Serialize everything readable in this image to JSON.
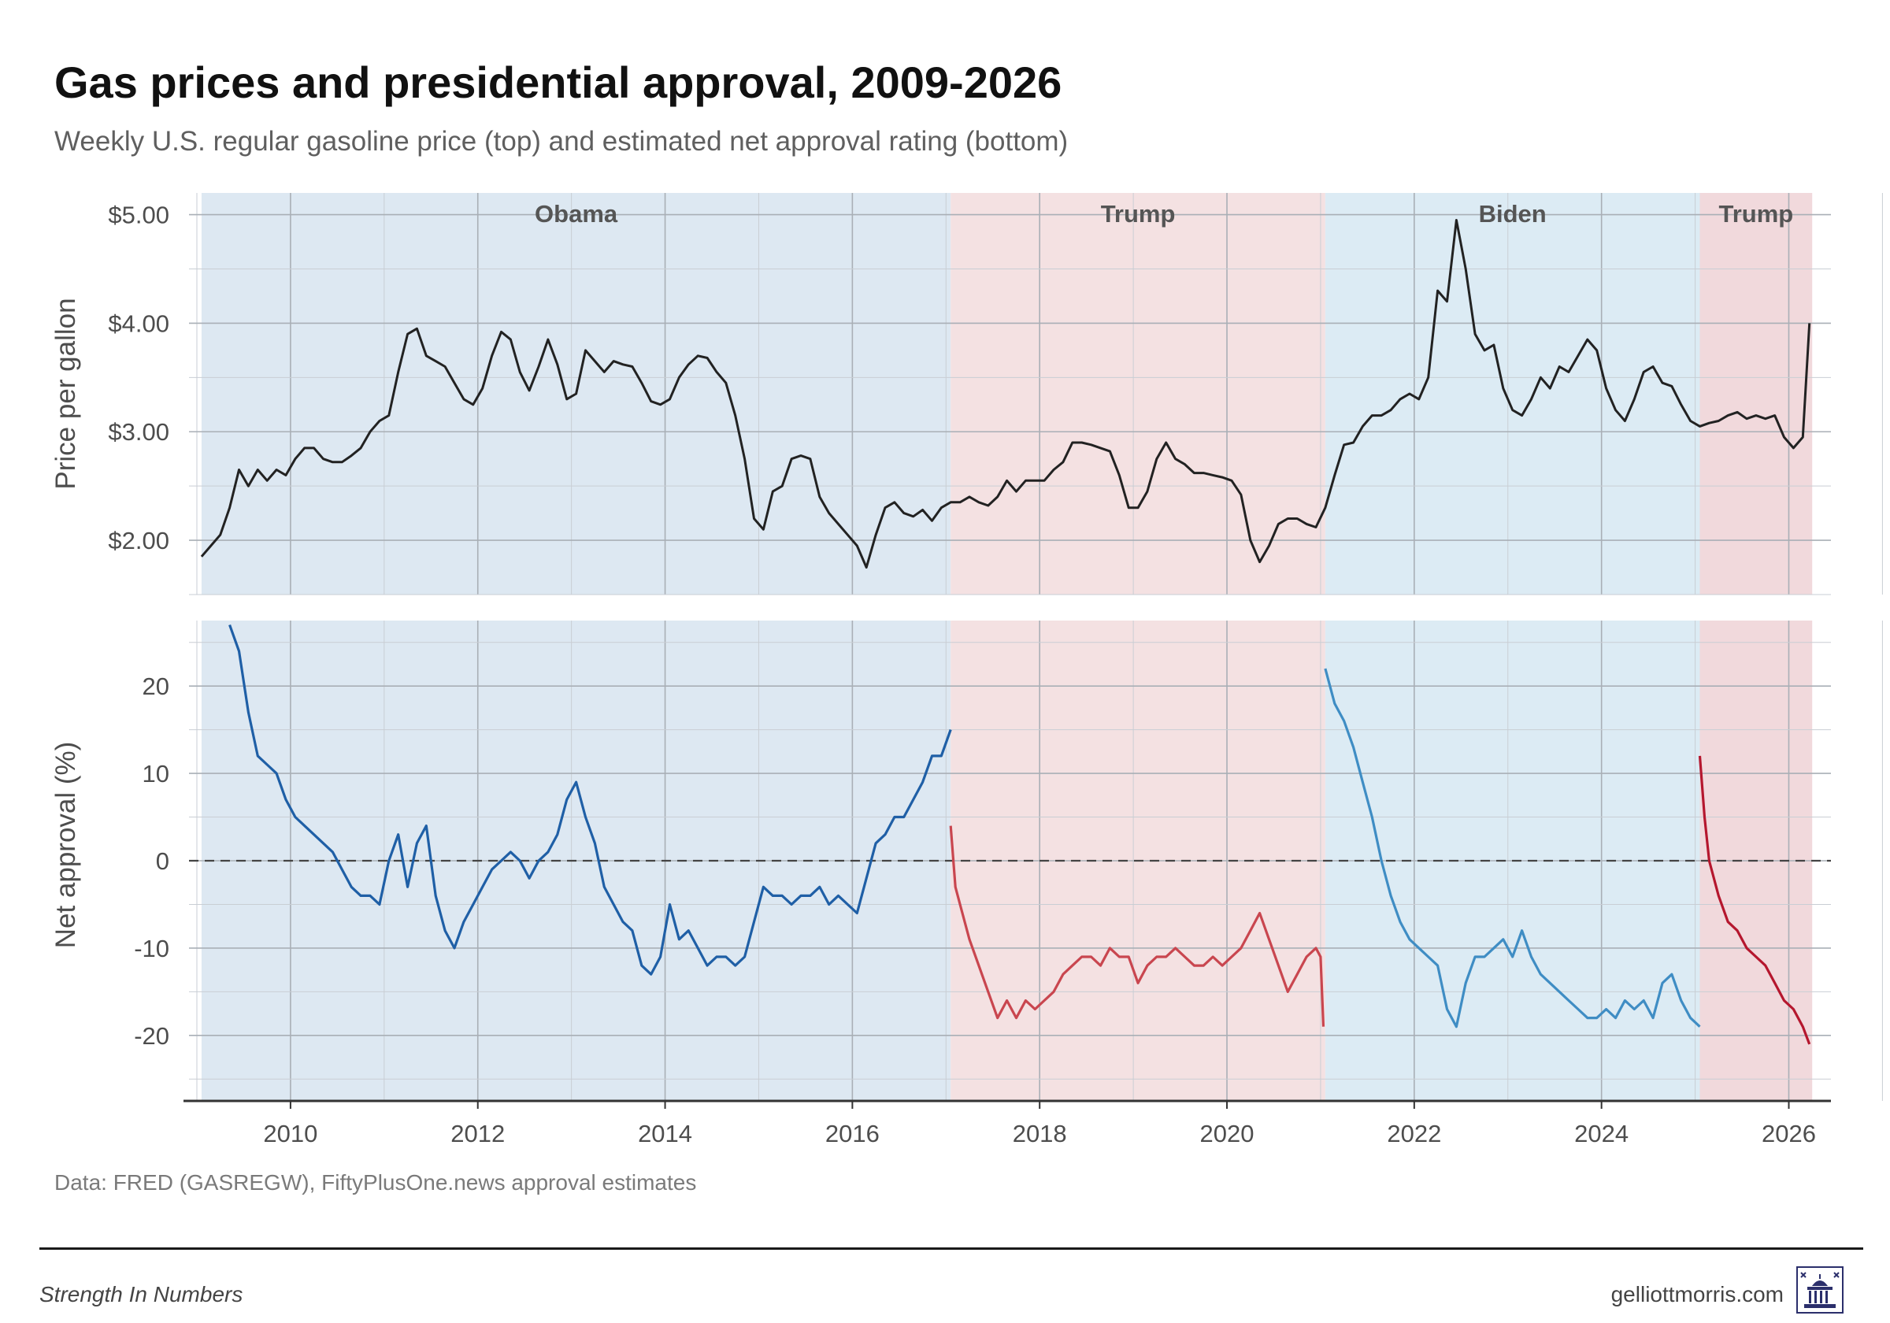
{
  "title": "Gas prices and presidential approval, 2009-2026",
  "subtitle": "Weekly U.S. regular gasoline price (top) and estimated net approval rating (bottom)",
  "caption": "Data: FRED (GASREGW), FiftyPlusOne.news approval estimates",
  "footer": {
    "left": "Strength In Numbers",
    "right": "gelliottmorris.com"
  },
  "colors": {
    "dem_band": "#dde8f2",
    "rep_band": "#f4e1e2",
    "biden_band": "#dcebf4",
    "trump2_band": "#f1d9dc",
    "gas_line": "#222222",
    "obama": "#1f5fa6",
    "trump1": "#c9464f",
    "biden": "#3f8dc4",
    "trump2": "#b5172e"
  },
  "chart_data": [
    {
      "type": "line",
      "panel": "top",
      "ylabel": "Price per gallon",
      "xlim": [
        2009.0,
        2026.45
      ],
      "ylim": [
        1.5,
        5.2
      ],
      "yticks": [
        2.0,
        3.0,
        4.0,
        5.0
      ],
      "ytick_labels": [
        "$2.00",
        "$3.00",
        "$4.00",
        "$5.00"
      ],
      "eras": [
        {
          "label": "Obama",
          "start": 2009.05,
          "end": 2017.05,
          "color": "#dde8f2"
        },
        {
          "label": "Trump",
          "start": 2017.05,
          "end": 2021.05,
          "color": "#f4e1e2"
        },
        {
          "label": "Biden",
          "start": 2021.05,
          "end": 2025.05,
          "color": "#dcebf4"
        },
        {
          "label": "Trump",
          "start": 2025.05,
          "end": 2026.25,
          "color": "#f1d9dc"
        }
      ],
      "series": [
        {
          "name": "Weekly U.S. regular gasoline price",
          "x": [
            2009.05,
            2009.15,
            2009.25,
            2009.35,
            2009.45,
            2009.55,
            2009.65,
            2009.75,
            2009.85,
            2009.95,
            2010.05,
            2010.15,
            2010.25,
            2010.35,
            2010.45,
            2010.55,
            2010.65,
            2010.75,
            2010.85,
            2010.95,
            2011.05,
            2011.15,
            2011.25,
            2011.35,
            2011.45,
            2011.55,
            2011.65,
            2011.75,
            2011.85,
            2011.95,
            2012.05,
            2012.15,
            2012.25,
            2012.35,
            2012.45,
            2012.55,
            2012.65,
            2012.75,
            2012.85,
            2012.95,
            2013.05,
            2013.15,
            2013.25,
            2013.35,
            2013.45,
            2013.55,
            2013.65,
            2013.75,
            2013.85,
            2013.95,
            2014.05,
            2014.15,
            2014.25,
            2014.35,
            2014.45,
            2014.55,
            2014.65,
            2014.75,
            2014.85,
            2014.95,
            2015.05,
            2015.15,
            2015.25,
            2015.35,
            2015.45,
            2015.55,
            2015.65,
            2015.75,
            2015.85,
            2015.95,
            2016.05,
            2016.15,
            2016.25,
            2016.35,
            2016.45,
            2016.55,
            2016.65,
            2016.75,
            2016.85,
            2016.95,
            2017.05,
            2017.15,
            2017.25,
            2017.35,
            2017.45,
            2017.55,
            2017.65,
            2017.75,
            2017.85,
            2017.95,
            2018.05,
            2018.15,
            2018.25,
            2018.35,
            2018.45,
            2018.55,
            2018.65,
            2018.75,
            2018.85,
            2018.95,
            2019.05,
            2019.15,
            2019.25,
            2019.35,
            2019.45,
            2019.55,
            2019.65,
            2019.75,
            2019.85,
            2019.95,
            2020.05,
            2020.15,
            2020.25,
            2020.35,
            2020.45,
            2020.55,
            2020.65,
            2020.75,
            2020.85,
            2020.95,
            2021.05,
            2021.15,
            2021.25,
            2021.35,
            2021.45,
            2021.55,
            2021.65,
            2021.75,
            2021.85,
            2021.95,
            2022.05,
            2022.15,
            2022.25,
            2022.35,
            2022.45,
            2022.55,
            2022.65,
            2022.75,
            2022.85,
            2022.95,
            2023.05,
            2023.15,
            2023.25,
            2023.35,
            2023.45,
            2023.55,
            2023.65,
            2023.75,
            2023.85,
            2023.95,
            2024.05,
            2024.15,
            2024.25,
            2024.35,
            2024.45,
            2024.55,
            2024.65,
            2024.75,
            2024.85,
            2024.95,
            2025.05,
            2025.15,
            2025.25,
            2025.35,
            2025.45,
            2025.55,
            2025.65,
            2025.75,
            2025.85,
            2025.95,
            2026.05,
            2026.15,
            2026.22
          ],
          "values": [
            1.85,
            1.95,
            2.05,
            2.3,
            2.65,
            2.5,
            2.65,
            2.55,
            2.65,
            2.6,
            2.75,
            2.85,
            2.85,
            2.75,
            2.72,
            2.72,
            2.78,
            2.85,
            3.0,
            3.1,
            3.15,
            3.55,
            3.9,
            3.95,
            3.7,
            3.65,
            3.6,
            3.45,
            3.3,
            3.25,
            3.4,
            3.7,
            3.92,
            3.85,
            3.55,
            3.38,
            3.6,
            3.85,
            3.62,
            3.3,
            3.35,
            3.75,
            3.65,
            3.55,
            3.65,
            3.62,
            3.6,
            3.45,
            3.28,
            3.25,
            3.3,
            3.5,
            3.62,
            3.7,
            3.68,
            3.55,
            3.45,
            3.15,
            2.75,
            2.2,
            2.1,
            2.45,
            2.5,
            2.75,
            2.78,
            2.75,
            2.4,
            2.25,
            2.15,
            2.05,
            1.95,
            1.75,
            2.05,
            2.3,
            2.35,
            2.25,
            2.22,
            2.28,
            2.18,
            2.3,
            2.35,
            2.35,
            2.4,
            2.35,
            2.32,
            2.4,
            2.55,
            2.45,
            2.55,
            2.55,
            2.55,
            2.65,
            2.72,
            2.9,
            2.9,
            2.88,
            2.85,
            2.82,
            2.6,
            2.3,
            2.3,
            2.45,
            2.75,
            2.9,
            2.75,
            2.7,
            2.62,
            2.62,
            2.6,
            2.58,
            2.55,
            2.42,
            2.0,
            1.8,
            1.95,
            2.15,
            2.2,
            2.2,
            2.15,
            2.12,
            2.3,
            2.6,
            2.88,
            2.9,
            3.05,
            3.15,
            3.15,
            3.2,
            3.3,
            3.35,
            3.3,
            3.5,
            4.3,
            4.2,
            4.95,
            4.5,
            3.9,
            3.75,
            3.8,
            3.4,
            3.2,
            3.15,
            3.3,
            3.5,
            3.4,
            3.6,
            3.55,
            3.7,
            3.85,
            3.75,
            3.4,
            3.2,
            3.1,
            3.3,
            3.55,
            3.6,
            3.45,
            3.42,
            3.25,
            3.1,
            3.05,
            3.08,
            3.1,
            3.15,
            3.18,
            3.12,
            3.15,
            3.12,
            3.15,
            2.95,
            2.85,
            2.95,
            4.0
          ]
        }
      ]
    },
    {
      "type": "line",
      "panel": "bottom",
      "ylabel": "Net approval (%)",
      "xlabel_ticks": [
        "2010",
        "2012",
        "2014",
        "2016",
        "2018",
        "2020",
        "2022",
        "2024",
        "2026"
      ],
      "xticks": [
        2010,
        2012,
        2014,
        2016,
        2018,
        2020,
        2022,
        2024,
        2026
      ],
      "xlim": [
        2009.0,
        2026.45
      ],
      "ylim": [
        -27.5,
        27.5
      ],
      "yticks": [
        -20,
        -10,
        0,
        10,
        20
      ],
      "ytick_labels": [
        "-20",
        "-10",
        "0",
        "10",
        "20"
      ],
      "reference_line": 0,
      "series": [
        {
          "name": "Obama",
          "color": "#1f5fa6",
          "x": [
            2009.35,
            2009.45,
            2009.55,
            2009.65,
            2009.75,
            2009.85,
            2009.95,
            2010.05,
            2010.15,
            2010.25,
            2010.35,
            2010.45,
            2010.55,
            2010.65,
            2010.75,
            2010.85,
            2010.95,
            2011.05,
            2011.15,
            2011.25,
            2011.35,
            2011.45,
            2011.55,
            2011.65,
            2011.75,
            2011.85,
            2011.95,
            2012.05,
            2012.15,
            2012.25,
            2012.35,
            2012.45,
            2012.55,
            2012.65,
            2012.75,
            2012.85,
            2012.95,
            2013.05,
            2013.15,
            2013.25,
            2013.35,
            2013.45,
            2013.55,
            2013.65,
            2013.75,
            2013.85,
            2013.95,
            2014.05,
            2014.15,
            2014.25,
            2014.35,
            2014.45,
            2014.55,
            2014.65,
            2014.75,
            2014.85,
            2014.95,
            2015.05,
            2015.15,
            2015.25,
            2015.35,
            2015.45,
            2015.55,
            2015.65,
            2015.75,
            2015.85,
            2015.95,
            2016.05,
            2016.15,
            2016.25,
            2016.35,
            2016.45,
            2016.55,
            2016.65,
            2016.75,
            2016.85,
            2016.95,
            2017.05
          ],
          "values": [
            27,
            24,
            17,
            12,
            11,
            10,
            7,
            5,
            4,
            3,
            2,
            1,
            -1,
            -3,
            -4,
            -4,
            -5,
            0,
            3,
            -3,
            2,
            4,
            -4,
            -8,
            -10,
            -7,
            -5,
            -3,
            -1,
            0,
            1,
            0,
            -2,
            0,
            1,
            3,
            7,
            9,
            5,
            2,
            -3,
            -5,
            -7,
            -8,
            -12,
            -13,
            -11,
            -5,
            -9,
            -8,
            -10,
            -12,
            -11,
            -11,
            -12,
            -11,
            -7,
            -3,
            -4,
            -4,
            -5,
            -4,
            -4,
            -3,
            -5,
            -4,
            -5,
            -6,
            -2,
            2,
            3,
            5,
            5,
            7,
            9,
            12,
            12,
            15
          ]
        },
        {
          "name": "Trump (first term)",
          "color": "#c9464f",
          "x": [
            2017.05,
            2017.1,
            2017.15,
            2017.25,
            2017.35,
            2017.45,
            2017.55,
            2017.65,
            2017.75,
            2017.85,
            2017.95,
            2018.05,
            2018.15,
            2018.25,
            2018.35,
            2018.45,
            2018.55,
            2018.65,
            2018.75,
            2018.85,
            2018.95,
            2019.05,
            2019.15,
            2019.25,
            2019.35,
            2019.45,
            2019.55,
            2019.65,
            2019.75,
            2019.85,
            2019.95,
            2020.05,
            2020.15,
            2020.25,
            2020.35,
            2020.45,
            2020.55,
            2020.65,
            2020.75,
            2020.85,
            2020.95,
            2021.0,
            2021.03
          ],
          "values": [
            4,
            -3,
            -5,
            -9,
            -12,
            -15,
            -18,
            -16,
            -18,
            -16,
            -17,
            -16,
            -15,
            -13,
            -12,
            -11,
            -11,
            -12,
            -10,
            -11,
            -11,
            -14,
            -12,
            -11,
            -11,
            -10,
            -11,
            -12,
            -12,
            -11,
            -12,
            -11,
            -10,
            -8,
            -6,
            -9,
            -12,
            -15,
            -13,
            -11,
            -10,
            -11,
            -19
          ]
        },
        {
          "name": "Biden",
          "color": "#3f8dc4",
          "x": [
            2021.05,
            2021.15,
            2021.25,
            2021.35,
            2021.45,
            2021.55,
            2021.65,
            2021.75,
            2021.85,
            2021.95,
            2022.05,
            2022.15,
            2022.25,
            2022.35,
            2022.45,
            2022.55,
            2022.65,
            2022.75,
            2022.85,
            2022.95,
            2023.05,
            2023.15,
            2023.25,
            2023.35,
            2023.45,
            2023.55,
            2023.65,
            2023.75,
            2023.85,
            2023.95,
            2024.05,
            2024.15,
            2024.25,
            2024.35,
            2024.45,
            2024.55,
            2024.65,
            2024.75,
            2024.85,
            2024.95,
            2025.05
          ],
          "values": [
            22,
            18,
            16,
            13,
            9,
            5,
            0,
            -4,
            -7,
            -9,
            -10,
            -11,
            -12,
            -17,
            -19,
            -14,
            -11,
            -11,
            -10,
            -9,
            -11,
            -8,
            -11,
            -13,
            -14,
            -15,
            -16,
            -17,
            -18,
            -18,
            -17,
            -18,
            -16,
            -17,
            -16,
            -18,
            -14,
            -13,
            -16,
            -18,
            -19
          ]
        },
        {
          "name": "Trump (second term)",
          "color": "#b5172e",
          "x": [
            2025.05,
            2025.1,
            2025.15,
            2025.25,
            2025.35,
            2025.45,
            2025.55,
            2025.65,
            2025.75,
            2025.85,
            2025.95,
            2026.05,
            2026.15,
            2026.22
          ],
          "values": [
            12,
            5,
            0,
            -4,
            -7,
            -8,
            -10,
            -11,
            -12,
            -14,
            -16,
            -17,
            -19,
            -21
          ]
        }
      ]
    }
  ]
}
